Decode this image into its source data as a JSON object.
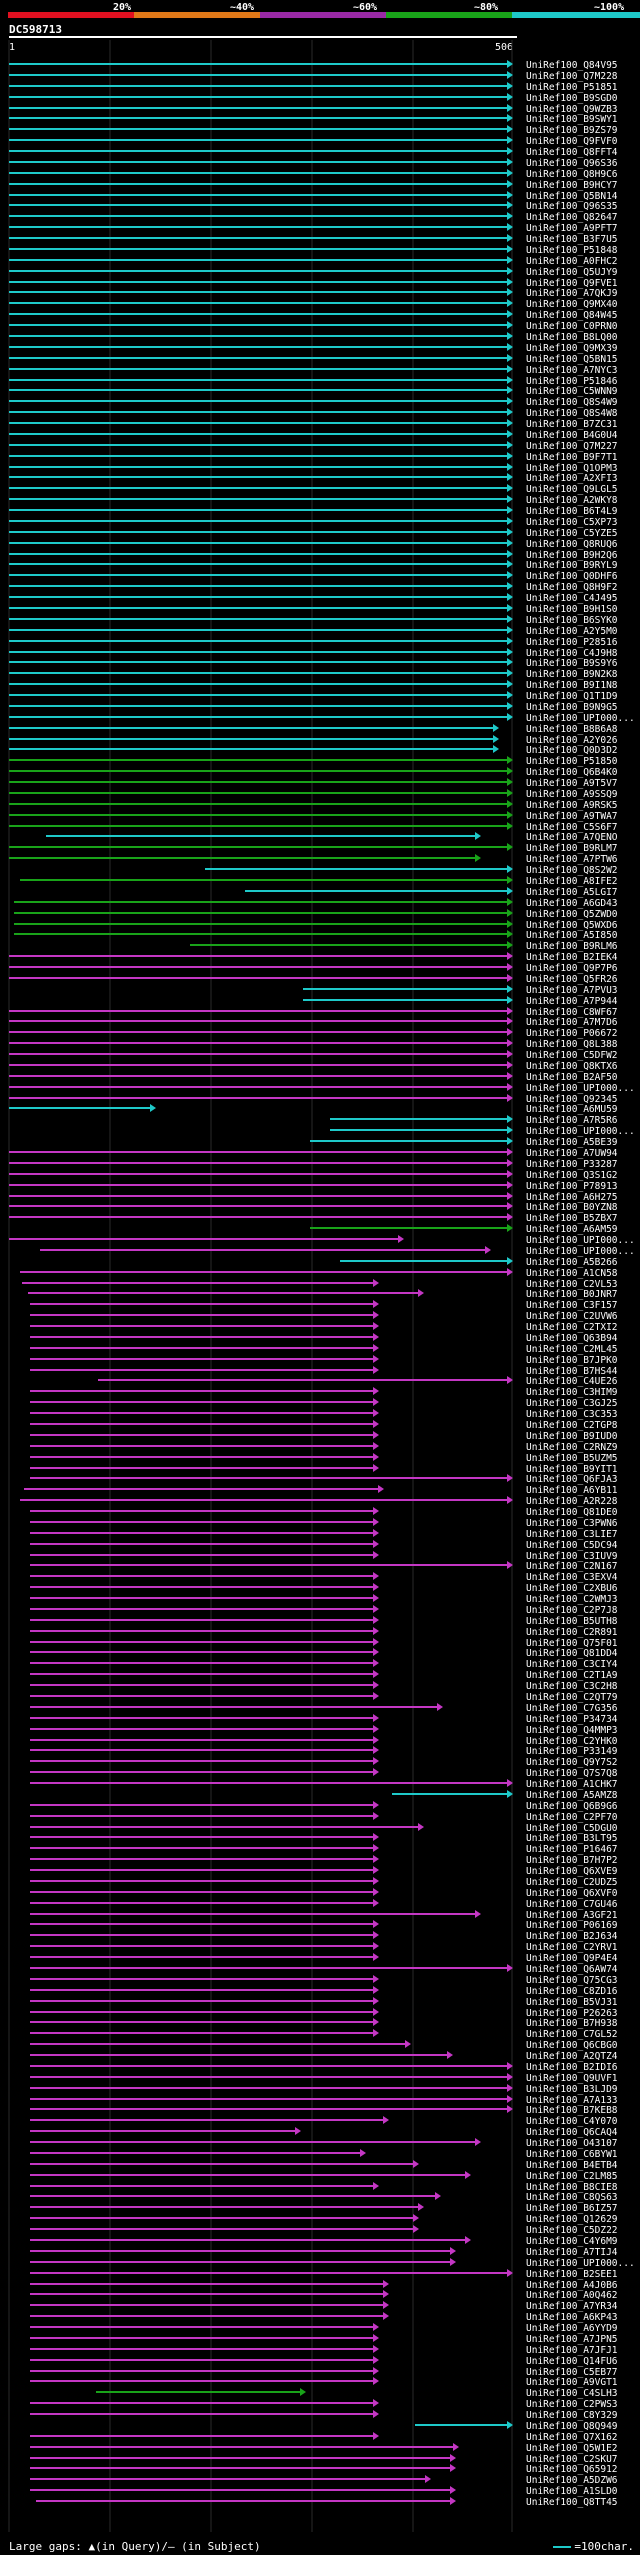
{
  "header": {
    "ticks": [
      "20%",
      "~40%",
      "~60%",
      "~80%",
      "~100%"
    ],
    "colors": [
      "#e01020",
      "#e07818",
      "#9a2aa6",
      "#19a319",
      "#1ec9c9"
    ],
    "query_name": "DC598713",
    "query_start": "1",
    "query_end": "506"
  },
  "footer": {
    "large_gaps_label": "Large gaps: ▲(in Query)/– (in Subject)",
    "legend_label": "=100char."
  },
  "hits": [
    {
      "id": "UniRef100_Q84V95",
      "c": "cyan"
    },
    {
      "id": "UniRef100_Q7M228",
      "c": "cyan"
    },
    {
      "id": "UniRef100_P51851",
      "c": "cyan"
    },
    {
      "id": "UniRef100_B9SGD0",
      "c": "cyan"
    },
    {
      "id": "UniRef100_Q9WZB3",
      "c": "cyan"
    },
    {
      "id": "UniRef100_B9SWY1",
      "c": "cyan"
    },
    {
      "id": "UniRef100_B9ZS79",
      "c": "cyan"
    },
    {
      "id": "UniRef100_Q9FVF0",
      "c": "cyan"
    },
    {
      "id": "UniRef100_Q8FFT4",
      "c": "cyan"
    },
    {
      "id": "UniRef100_Q96S36",
      "c": "cyan"
    },
    {
      "id": "UniRef100_Q8H9C6",
      "c": "cyan"
    },
    {
      "id": "UniRef100_B9HCY7",
      "c": "cyan"
    },
    {
      "id": "UniRef100_Q5BN14",
      "c": "cyan"
    },
    {
      "id": "UniRef100_Q96S35",
      "c": "cyan"
    },
    {
      "id": "UniRef100_Q82647",
      "c": "cyan"
    },
    {
      "id": "UniRef100_A9PFT7",
      "c": "cyan"
    },
    {
      "id": "UniRef100_B3F7U5",
      "c": "cyan"
    },
    {
      "id": "UniRef100_P51848",
      "c": "cyan"
    },
    {
      "id": "UniRef100_A0FHC2",
      "c": "cyan"
    },
    {
      "id": "UniRef100_Q5UJY9",
      "c": "cyan"
    },
    {
      "id": "UniRef100_Q9FVE1",
      "c": "cyan"
    },
    {
      "id": "UniRef100_A7QKJ9",
      "c": "cyan"
    },
    {
      "id": "UniRef100_Q9MX40",
      "c": "cyan"
    },
    {
      "id": "UniRef100_Q84W45",
      "c": "cyan"
    },
    {
      "id": "UniRef100_C0PRN0",
      "c": "cyan"
    },
    {
      "id": "UniRef100_B8LQ00",
      "c": "cyan"
    },
    {
      "id": "UniRef100_Q9MX39",
      "c": "cyan"
    },
    {
      "id": "UniRef100_Q5BN15",
      "c": "cyan"
    },
    {
      "id": "UniRef100_A7NYC3",
      "c": "cyan"
    },
    {
      "id": "UniRef100_P51846",
      "c": "cyan"
    },
    {
      "id": "UniRef100_C5WNN9",
      "c": "cyan"
    },
    {
      "id": "UniRef100_Q8S4W9",
      "c": "cyan"
    },
    {
      "id": "UniRef100_Q8S4W8",
      "c": "cyan"
    },
    {
      "id": "UniRef100_B7ZC31",
      "c": "cyan"
    },
    {
      "id": "UniRef100_B4G0U4",
      "c": "cyan"
    },
    {
      "id": "UniRef100_Q7M227",
      "c": "cyan"
    },
    {
      "id": "UniRef100_B9F7T1",
      "c": "cyan"
    },
    {
      "id": "UniRef100_Q1OPM3",
      "c": "cyan"
    },
    {
      "id": "UniRef100_A2XFI3",
      "c": "cyan"
    },
    {
      "id": "UniRef100_Q9LGL5",
      "c": "cyan"
    },
    {
      "id": "UniRef100_A2WKY8",
      "c": "cyan"
    },
    {
      "id": "UniRef100_B6T4L9",
      "c": "cyan"
    },
    {
      "id": "UniRef100_C5XP73",
      "c": "cyan"
    },
    {
      "id": "UniRef100_C5YZE5",
      "c": "cyan"
    },
    {
      "id": "UniRef100_Q8RUQ6",
      "c": "cyan"
    },
    {
      "id": "UniRef100_B9H2Q6",
      "c": "cyan"
    },
    {
      "id": "UniRef100_B9RYL9",
      "c": "cyan"
    },
    {
      "id": "UniRef100_Q0DHF6",
      "c": "cyan"
    },
    {
      "id": "UniRef100_Q8H9F2",
      "c": "cyan"
    },
    {
      "id": "UniRef100_C4J495",
      "c": "cyan"
    },
    {
      "id": "UniRef100_B9H1S0",
      "c": "cyan"
    },
    {
      "id": "UniRef100_B6SYK0",
      "c": "cyan"
    },
    {
      "id": "UniRef100_A2Y5M0",
      "c": "cyan"
    },
    {
      "id": "UniRef100_P28516",
      "c": "cyan"
    },
    {
      "id": "UniRef100_C4J9H8",
      "c": "cyan"
    },
    {
      "id": "UniRef100_B9S9Y6",
      "c": "cyan"
    },
    {
      "id": "UniRef100_B9N2K8",
      "c": "cyan"
    },
    {
      "id": "UniRef100_B9I1N8",
      "c": "cyan"
    },
    {
      "id": "UniRef100_Q1T1D9",
      "c": "cyan"
    },
    {
      "id": "UniRef100_B9N9G5",
      "c": "cyan"
    },
    {
      "id": "UniRef100_UPI000...",
      "c": "cyan"
    },
    {
      "id": "UniRef100_B8B6A8",
      "c": "cyan",
      "x2": 498
    },
    {
      "id": "UniRef100_A2Y026",
      "c": "cyan",
      "x2": 498
    },
    {
      "id": "UniRef100_Q0D3D2",
      "c": "cyan",
      "x2": 498
    },
    {
      "id": "UniRef100_P51850",
      "c": "green"
    },
    {
      "id": "UniRef100_Q6B4K0",
      "c": "green"
    },
    {
      "id": "UniRef100_A9T5V7",
      "c": "green"
    },
    {
      "id": "UniRef100_A9SSQ9",
      "c": "green"
    },
    {
      "id": "UniRef100_A9RSK5",
      "c": "green"
    },
    {
      "id": "UniRef100_A9TWA7",
      "c": "green"
    },
    {
      "id": "UniRef100_C5S6F7",
      "c": "green"
    },
    {
      "id": "UniRef100_A7QENO",
      "c": "cyan",
      "x1": 46,
      "x2": 480
    },
    {
      "id": "UniRef100_B9RLM7",
      "c": "green"
    },
    {
      "id": "UniRef100_A7PTW6",
      "c": "green",
      "x2": 480
    },
    {
      "id": "UniRef100_Q8S2W2",
      "c": "cyan",
      "x1": 205
    },
    {
      "id": "UniRef100_A8IFE2",
      "c": "green",
      "x1": 20
    },
    {
      "id": "UniRef100_A5LGI7",
      "c": "cyan",
      "x1": 245
    },
    {
      "id": "UniRef100_A6GD43",
      "c": "green",
      "x1": 14
    },
    {
      "id": "UniRef100_Q5ZWD0",
      "c": "green",
      "x1": 14
    },
    {
      "id": "UniRef100_Q5WXD6",
      "c": "green",
      "x1": 14
    },
    {
      "id": "UniRef100_A5I850",
      "c": "green",
      "x1": 14
    },
    {
      "id": "UniRef100_B9RLM6",
      "c": "green",
      "x1": 190
    },
    {
      "id": "UniRef100_B2IEK4",
      "c": "magenta"
    },
    {
      "id": "UniRef100_Q9P7P6",
      "c": "magenta"
    },
    {
      "id": "UniRef100_Q5FR26",
      "c": "magenta"
    },
    {
      "id": "UniRef100_A7PVU3",
      "c": "cyan",
      "x1": 303
    },
    {
      "id": "UniRef100_A7P944",
      "c": "cyan",
      "x1": 303
    },
    {
      "id": "UniRef100_C8WF67",
      "c": "magenta"
    },
    {
      "id": "UniRef100_A7M7D6",
      "c": "magenta"
    },
    {
      "id": "UniRef100_P06672",
      "c": "magenta"
    },
    {
      "id": "UniRef100_Q8L388",
      "c": "magenta"
    },
    {
      "id": "UniRef100_C5DFW2",
      "c": "magenta"
    },
    {
      "id": "UniRef100_Q8KTX6",
      "c": "magenta"
    },
    {
      "id": "UniRef100_B2AF50",
      "c": "magenta"
    },
    {
      "id": "UniRef100_UPI000...",
      "c": "magenta"
    },
    {
      "id": "UniRef100_Q92345",
      "c": "magenta"
    },
    {
      "id": "UniRef100_A6MU59",
      "c": "cyan",
      "x2": 155
    },
    {
      "id": "UniRef100_A7R5R6",
      "c": "cyan",
      "x1": 330
    },
    {
      "id": "UniRef100_UPI000...",
      "c": "cyan",
      "x1": 330
    },
    {
      "id": "UniRef100_A5BE39",
      "c": "cyan",
      "x1": 310
    },
    {
      "id": "UniRef100_A7UW94",
      "c": "magenta"
    },
    {
      "id": "UniRef100_P33287",
      "c": "magenta"
    },
    {
      "id": "UniRef100_Q3S1G2",
      "c": "magenta"
    },
    {
      "id": "UniRef100_P78913",
      "c": "magenta"
    },
    {
      "id": "UniRef100_A6H275",
      "c": "magenta"
    },
    {
      "id": "UniRef100_B0YZN8",
      "c": "magenta"
    },
    {
      "id": "UniRef100_B5ZBX7",
      "c": "magenta"
    },
    {
      "id": "UniRef100_A6AM59",
      "c": "green",
      "x1": 310
    },
    {
      "id": "UniRef100_UPI000...",
      "c": "magenta",
      "x2": 403
    },
    {
      "id": "UniRef100_UPI000...",
      "c": "magenta",
      "x1": 40,
      "x2": 490
    },
    {
      "id": "UniRef100_A5B266",
      "c": "cyan",
      "x1": 340
    },
    {
      "id": "UniRef100_A1CN58",
      "c": "magenta",
      "x1": 20
    },
    {
      "id": "UniRef100_C2VL53",
      "c": "magenta",
      "x1": 22,
      "x2": 378
    },
    {
      "id": "UniRef100_B0JNR7",
      "c": "magenta",
      "x1": 28,
      "x2": 423
    },
    {
      "id": "UniRef100_C3F157",
      "c": "magenta",
      "x1": 30,
      "x2": 378
    },
    {
      "id": "UniRef100_C2UVW6",
      "c": "magenta",
      "x1": 30,
      "x2": 378
    },
    {
      "id": "UniRef100_C2TXI2",
      "c": "magenta",
      "x1": 30,
      "x2": 378
    },
    {
      "id": "UniRef100_Q63B94",
      "c": "magenta",
      "x1": 30,
      "x2": 378
    },
    {
      "id": "UniRef100_C2ML45",
      "c": "magenta",
      "x1": 30,
      "x2": 378
    },
    {
      "id": "UniRef100_B7JPK0",
      "c": "magenta",
      "x1": 30,
      "x2": 378
    },
    {
      "id": "UniRef100_B7HS44",
      "c": "magenta",
      "x1": 30,
      "x2": 378
    },
    {
      "id": "UniRef100_C4UE26",
      "c": "magenta",
      "x1": 98
    },
    {
      "id": "UniRef100_C3HIM9",
      "c": "magenta",
      "x1": 30,
      "x2": 378
    },
    {
      "id": "UniRef100_C3GJ25",
      "c": "magenta",
      "x1": 30,
      "x2": 378
    },
    {
      "id": "UniRef100_C3C353",
      "c": "magenta",
      "x1": 30,
      "x2": 378
    },
    {
      "id": "UniRef100_C2TGP8",
      "c": "magenta",
      "x1": 30,
      "x2": 378
    },
    {
      "id": "UniRef100_B9IUD0",
      "c": "magenta",
      "x1": 30,
      "x2": 378
    },
    {
      "id": "UniRef100_C2RNZ9",
      "c": "magenta",
      "x1": 30,
      "x2": 378
    },
    {
      "id": "UniRef100_B5UZM5",
      "c": "magenta",
      "x1": 30,
      "x2": 378
    },
    {
      "id": "UniRef100_B9YIT1",
      "c": "magenta",
      "x1": 30,
      "x2": 378
    },
    {
      "id": "UniRef100_Q6FJA3",
      "c": "magenta",
      "x1": 30
    },
    {
      "id": "UniRef100_A6YB11",
      "c": "magenta",
      "x1": 24,
      "x2": 383
    },
    {
      "id": "UniRef100_A2R228",
      "c": "magenta",
      "x1": 20
    },
    {
      "id": "UniRef100_Q81DE0",
      "c": "magenta",
      "x1": 30,
      "x2": 378
    },
    {
      "id": "UniRef100_C3PWN6",
      "c": "magenta",
      "x1": 30,
      "x2": 378
    },
    {
      "id": "UniRef100_C3LIE7",
      "c": "magenta",
      "x1": 30,
      "x2": 378
    },
    {
      "id": "UniRef100_C5DC94",
      "c": "magenta",
      "x1": 30,
      "x2": 378
    },
    {
      "id": "UniRef100_C3IUV9",
      "c": "magenta",
      "x1": 30,
      "x2": 378
    },
    {
      "id": "UniRef100_C2N167",
      "c": "magenta",
      "x1": 30
    },
    {
      "id": "UniRef100_C3EXV4",
      "c": "magenta",
      "x1": 30,
      "x2": 378
    },
    {
      "id": "UniRef100_C2XBU6",
      "c": "magenta",
      "x1": 30,
      "x2": 378
    },
    {
      "id": "UniRef100_C2WMJ3",
      "c": "magenta",
      "x1": 30,
      "x2": 378
    },
    {
      "id": "UniRef100_C2P7J8",
      "c": "magenta",
      "x1": 30,
      "x2": 378
    },
    {
      "id": "UniRef100_B5UTH8",
      "c": "magenta",
      "x1": 30,
      "x2": 378
    },
    {
      "id": "UniRef100_C2R891",
      "c": "magenta",
      "x1": 30,
      "x2": 378
    },
    {
      "id": "UniRef100_Q75F01",
      "c": "magenta",
      "x1": 30,
      "x2": 378
    },
    {
      "id": "UniRef100_Q81DD4",
      "c": "magenta",
      "x1": 30,
      "x2": 378
    },
    {
      "id": "UniRef100_C3CIY4",
      "c": "magenta",
      "x1": 30,
      "x2": 378
    },
    {
      "id": "UniRef100_C2T1A9",
      "c": "magenta",
      "x1": 30,
      "x2": 378
    },
    {
      "id": "UniRef100_C3C2H8",
      "c": "magenta",
      "x1": 30,
      "x2": 378
    },
    {
      "id": "UniRef100_C2QT79",
      "c": "magenta",
      "x1": 30,
      "x2": 378
    },
    {
      "id": "UniRef100_C7G356",
      "c": "magenta",
      "x1": 30,
      "x2": 442
    },
    {
      "id": "UniRef100_P34734",
      "c": "magenta",
      "x1": 30,
      "x2": 378
    },
    {
      "id": "UniRef100_Q4MMP3",
      "c": "magenta",
      "x1": 30,
      "x2": 378
    },
    {
      "id": "UniRef100_C2YHK0",
      "c": "magenta",
      "x1": 30,
      "x2": 378
    },
    {
      "id": "UniRef100_P33149",
      "c": "magenta",
      "x1": 30,
      "x2": 378
    },
    {
      "id": "UniRef100_Q9Y7S2",
      "c": "magenta",
      "x1": 30,
      "x2": 378
    },
    {
      "id": "UniRef100_Q7S7Q8",
      "c": "magenta",
      "x1": 30,
      "x2": 378
    },
    {
      "id": "UniRef100_A1CHK7",
      "c": "magenta",
      "x1": 30
    },
    {
      "id": "UniRef100_A5AMZ8",
      "c": "cyan",
      "x1": 392
    },
    {
      "id": "UniRef100_Q6B9G6",
      "c": "magenta",
      "x1": 30,
      "x2": 378
    },
    {
      "id": "UniRef100_C2PF70",
      "c": "magenta",
      "x1": 30,
      "x2": 378
    },
    {
      "id": "UniRef100_C5DGU0",
      "c": "magenta",
      "x1": 30,
      "x2": 423
    },
    {
      "id": "UniRef100_B3LT95",
      "c": "magenta",
      "x1": 30,
      "x2": 378
    },
    {
      "id": "UniRef100_P16467",
      "c": "magenta",
      "x1": 30,
      "x2": 378
    },
    {
      "id": "UniRef100_B7H7P2",
      "c": "magenta",
      "x1": 30,
      "x2": 378
    },
    {
      "id": "UniRef100_Q6XVE9",
      "c": "magenta",
      "x1": 30,
      "x2": 378
    },
    {
      "id": "UniRef100_C2UDZ5",
      "c": "magenta",
      "x1": 30,
      "x2": 378
    },
    {
      "id": "UniRef100_Q6XVF0",
      "c": "magenta",
      "x1": 30,
      "x2": 378
    },
    {
      "id": "UniRef100_C7GU46",
      "c": "magenta",
      "x1": 30,
      "x2": 378
    },
    {
      "id": "UniRef100_A3GF21",
      "c": "magenta",
      "x1": 30,
      "x2": 480
    },
    {
      "id": "UniRef100_P06169",
      "c": "magenta",
      "x1": 30,
      "x2": 378
    },
    {
      "id": "UniRef100_B2J634",
      "c": "magenta",
      "x1": 30,
      "x2": 378
    },
    {
      "id": "UniRef100_C2YRV1",
      "c": "magenta",
      "x1": 30,
      "x2": 378
    },
    {
      "id": "UniRef100_Q9P4E4",
      "c": "magenta",
      "x1": 30,
      "x2": 378
    },
    {
      "id": "UniRef100_Q6AW74",
      "c": "magenta",
      "x1": 30
    },
    {
      "id": "UniRef100_Q75CG3",
      "c": "magenta",
      "x1": 30,
      "x2": 378
    },
    {
      "id": "UniRef100_C8ZD16",
      "c": "magenta",
      "x1": 30,
      "x2": 378
    },
    {
      "id": "UniRef100_B5VJ31",
      "c": "magenta",
      "x1": 30,
      "x2": 378
    },
    {
      "id": "UniRef100_P26263",
      "c": "magenta",
      "x1": 30,
      "x2": 378
    },
    {
      "id": "UniRef100_B7H938",
      "c": "magenta",
      "x1": 30,
      "x2": 378
    },
    {
      "id": "UniRef100_C7GL52",
      "c": "magenta",
      "x1": 30,
      "x2": 378
    },
    {
      "id": "UniRef100_Q6CBG0",
      "c": "magenta",
      "x1": 30,
      "x2": 410
    },
    {
      "id": "UniRef100_A2QTZ4",
      "c": "magenta",
      "x1": 30,
      "x2": 452
    },
    {
      "id": "UniRef100_B2IDI6",
      "c": "magenta",
      "x1": 30
    },
    {
      "id": "UniRef100_Q9UVF1",
      "c": "magenta",
      "x1": 30
    },
    {
      "id": "UniRef100_B3LJD9",
      "c": "magenta",
      "x1": 30
    },
    {
      "id": "UniRef100_A7A133",
      "c": "magenta",
      "x1": 30
    },
    {
      "id": "UniRef100_B7KEB8",
      "c": "magenta",
      "x1": 30
    },
    {
      "id": "UniRef100_C4Y070",
      "c": "magenta",
      "x1": 30,
      "x2": 388
    },
    {
      "id": "UniRef100_Q6CAQ4",
      "c": "magenta",
      "x1": 30,
      "x2": 300
    },
    {
      "id": "UniRef100_O43107",
      "c": "magenta",
      "x1": 30,
      "x2": 480
    },
    {
      "id": "UniRef100_C6BYW1",
      "c": "magenta",
      "x1": 30,
      "x2": 365
    },
    {
      "id": "UniRef100_B4ETB4",
      "c": "magenta",
      "x1": 30,
      "x2": 418
    },
    {
      "id": "UniRef100_C2LM85",
      "c": "magenta",
      "x1": 30,
      "x2": 470
    },
    {
      "id": "UniRef100_B8CIE8",
      "c": "magenta",
      "x1": 30,
      "x2": 378
    },
    {
      "id": "UniRef100_C8QS63",
      "c": "magenta",
      "x1": 30,
      "x2": 440
    },
    {
      "id": "UniRef100_B6IZ57",
      "c": "magenta",
      "x1": 30,
      "x2": 423
    },
    {
      "id": "UniRef100_Q12629",
      "c": "magenta",
      "x1": 30,
      "x2": 418
    },
    {
      "id": "UniRef100_C5DZ22",
      "c": "magenta",
      "x1": 30,
      "x2": 418
    },
    {
      "id": "UniRef100_C4Y6M9",
      "c": "magenta",
      "x1": 30,
      "x2": 470
    },
    {
      "id": "UniRef100_A7TIJ4",
      "c": "magenta",
      "x1": 30,
      "x2": 455
    },
    {
      "id": "UniRef100_UPI000...",
      "c": "magenta",
      "x1": 30,
      "x2": 455
    },
    {
      "id": "UniRef100_B2SEE1",
      "c": "magenta",
      "x1": 30
    },
    {
      "id": "UniRef100_A4J0B6",
      "c": "magenta",
      "x1": 30,
      "x2": 388
    },
    {
      "id": "UniRef100_A0Q462",
      "c": "magenta",
      "x1": 30,
      "x2": 388
    },
    {
      "id": "UniRef100_A7YR34",
      "c": "magenta",
      "x1": 30,
      "x2": 388
    },
    {
      "id": "UniRef100_A6KP43",
      "c": "magenta",
      "x1": 30,
      "x2": 388
    },
    {
      "id": "UniRef100_A6YYD9",
      "c": "magenta",
      "x1": 30,
      "x2": 378
    },
    {
      "id": "UniRef100_A7JPN5",
      "c": "magenta",
      "x1": 30,
      "x2": 378
    },
    {
      "id": "UniRef100_A7JFJ1",
      "c": "magenta",
      "x1": 30,
      "x2": 378
    },
    {
      "id": "UniRef100_Q14FU6",
      "c": "magenta",
      "x1": 30,
      "x2": 378
    },
    {
      "id": "UniRef100_C5EB77",
      "c": "magenta",
      "x1": 30,
      "x2": 378
    },
    {
      "id": "UniRef100_A9VGT1",
      "c": "magenta",
      "x1": 30,
      "x2": 378
    },
    {
      "id": "UniRef100_C4SLH3",
      "c": "green",
      "x1": 96,
      "x2": 305
    },
    {
      "id": "UniRef100_C2PWS3",
      "c": "magenta",
      "x1": 30,
      "x2": 378
    },
    {
      "id": "UniRef100_C8Y329",
      "c": "magenta",
      "x1": 30,
      "x2": 378
    },
    {
      "id": "UniRef100_Q8Q949",
      "c": "cyan",
      "x1": 415
    },
    {
      "id": "UniRef100_Q7X162",
      "c": "magenta",
      "x1": 30,
      "x2": 378
    },
    {
      "id": "UniRef100_Q5W1E2",
      "c": "magenta",
      "x1": 30,
      "x2": 458
    },
    {
      "id": "UniRef100_C2SKU7",
      "c": "magenta",
      "x1": 30,
      "x2": 455
    },
    {
      "id": "UniRef100_Q65912",
      "c": "magenta",
      "x1": 30,
      "x2": 455
    },
    {
      "id": "UniRef100_A5DZW6",
      "c": "magenta",
      "x1": 30,
      "x2": 430
    },
    {
      "id": "UniRef100_A1SLD0",
      "c": "magenta",
      "x1": 30,
      "x2": 455
    },
    {
      "id": "UniRef100_Q8TT45",
      "c": "magenta",
      "x1": 36,
      "x2": 455
    }
  ]
}
